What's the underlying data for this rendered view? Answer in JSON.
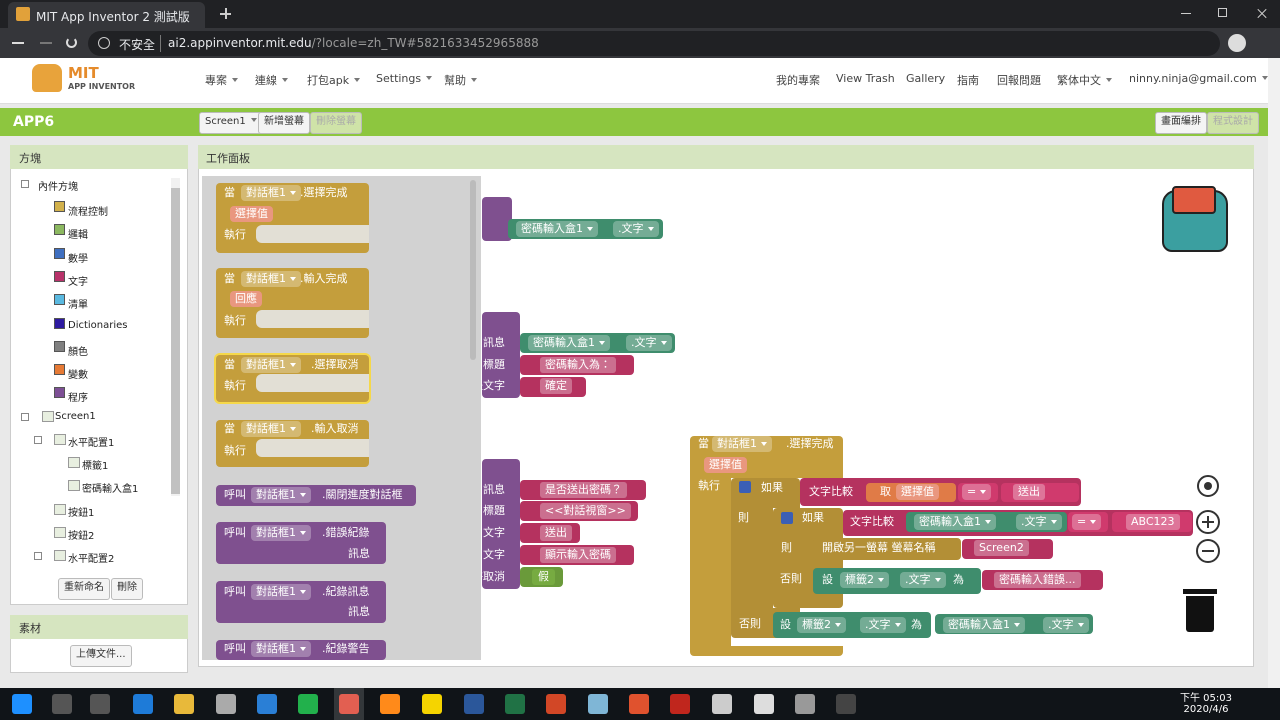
{
  "browser": {
    "tab_title": "MIT App Inventor 2 測試版",
    "security": "不安全",
    "url_host": "ai2.appinventor.mit.edu",
    "url_rest": "/?locale=zh_TW#5821633452965888"
  },
  "header": {
    "logo_top": "MIT",
    "logo_bottom": "APP INVENTOR",
    "menus": [
      "專案",
      "連線",
      "打包apk",
      "Settings",
      "幫助"
    ],
    "links": [
      "我的專案",
      "View Trash",
      "Gallery",
      "指南",
      "回報問題",
      "繁体中文",
      "ninny.ninja@gmail.com"
    ]
  },
  "toolbar": {
    "project": "APP6",
    "screen": "Screen1",
    "add_screen": "新增螢幕",
    "remove_screen": "刪除螢幕",
    "designer": "畫面編排",
    "blocks": "程式設計"
  },
  "blocks_panel": {
    "title": "方塊",
    "builtin": "內件方塊",
    "builtin_items": [
      {
        "label": "流程控制",
        "color": "#d2b14b"
      },
      {
        "label": "邏輯",
        "color": "#8cb860"
      },
      {
        "label": "數學",
        "color": "#3f6fc0"
      },
      {
        "label": "文字",
        "color": "#b8326a"
      },
      {
        "label": "清單",
        "color": "#5ab9e0"
      },
      {
        "label": "Dictionaries",
        "color": "#2d1aa0"
      },
      {
        "label": "顏色",
        "color": "#808080"
      },
      {
        "label": "變數",
        "color": "#e67a35"
      },
      {
        "label": "程序",
        "color": "#7d4f95"
      }
    ],
    "tree": [
      "Screen1",
      "水平配置1",
      "標籤1",
      "密碼輸入盒1",
      "按鈕1",
      "按鈕2",
      "水平配置2"
    ],
    "rename": "重新命名",
    "delete": "刪除"
  },
  "media_panel": {
    "title": "素材",
    "upload": "上傳文件..."
  },
  "workspace": {
    "title": "工作面板",
    "flyout": [
      [
        "當",
        "對話框1",
        ".選擇完成",
        "選擇值",
        "執行"
      ],
      [
        "當",
        "對話框1",
        ".輸入完成",
        "回應",
        "執行"
      ],
      [
        "當",
        "對話框1",
        ".選擇取消",
        "執行"
      ],
      [
        "當",
        "對話框1",
        ".輸入取消",
        "執行"
      ],
      [
        "呼叫",
        "對話框1",
        ".關閉進度對話框"
      ],
      [
        "呼叫",
        "對話框1",
        ".錯誤紀錄",
        "訊息"
      ],
      [
        "呼叫",
        "對話框1",
        ".紀錄訊息",
        "訊息"
      ],
      [
        "呼叫",
        "對話框1",
        ".紀錄警告"
      ]
    ],
    "background": {
      "getter": [
        "密碼輸入盒1",
        ".文字"
      ],
      "notifier": [
        "訊息",
        "標題",
        "按鈕文字"
      ],
      "notifier_values": [
        "密碼輸入盒1",
        ".文字",
        "密碼輸入為：",
        "確定"
      ],
      "chooser": [
        "訊息",
        "標題",
        "按鈕1文字",
        "按鈕2文字",
        "允許取消"
      ],
      "chooser_values": [
        "是否送出密碼？",
        "<<對話視窗>>",
        "送出",
        "顯示輸入密碼",
        "假"
      ]
    },
    "main": [
      "當",
      "對話框1",
      ".選擇完成",
      "選擇值",
      "執行",
      "如果",
      "文字比較",
      "取",
      "選擇值",
      "=",
      "送出",
      "則",
      "如果",
      "文字比較",
      "密碼輸入盒1",
      ".文字",
      "=",
      "ABC123",
      "則",
      "開啟另一螢幕 螢幕名稱",
      "Screen2",
      "否則",
      "設",
      "標籤2",
      ".文字",
      "為",
      "密碼輸入錯誤...",
      "否則",
      "設",
      "標籤2",
      ".文字",
      "為",
      "密碼輸入盒1",
      ".文字"
    ]
  },
  "taskbar": {
    "time": "下午 05:03",
    "date": "2020/4/6"
  }
}
